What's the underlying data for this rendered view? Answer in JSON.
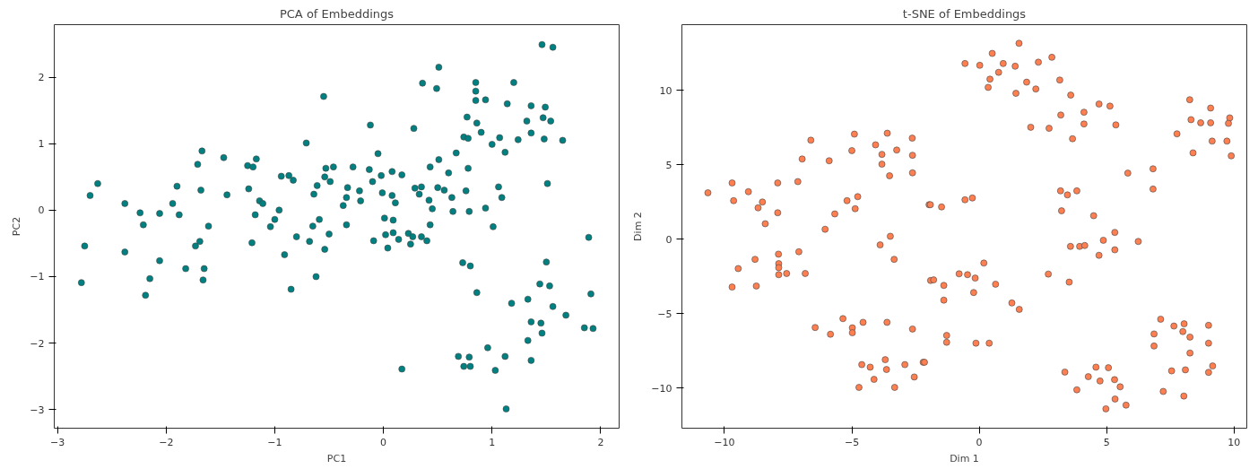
{
  "chart_data": [
    {
      "type": "scatter",
      "title": "PCA of Embeddings",
      "xlabel": "PC1",
      "ylabel": "PC2",
      "xlim": [
        -3.03,
        2.17
      ],
      "ylim": [
        -3.28,
        2.79
      ],
      "xticks": [
        -3,
        -2,
        -1,
        0,
        1,
        2
      ],
      "yticks": [
        -3,
        -2,
        -1,
        0,
        1,
        2
      ],
      "grid": false,
      "marker": "circle",
      "series": [
        {
          "color": "#008080",
          "x": [
            -2.78,
            -2.75,
            -2.7,
            -2.63,
            -2.38,
            -2.38,
            -2.24,
            -2.21,
            -2.19,
            -2.15,
            -2.06,
            -2.06,
            -1.94,
            -1.9,
            -1.88,
            -1.82,
            -1.73,
            -1.71,
            -1.69,
            -1.68,
            -1.67,
            -1.66,
            -1.65,
            -1.61,
            -1.47,
            -1.44,
            -1.25,
            -1.24,
            -1.21,
            -1.2,
            -1.17,
            -1.18,
            -1.14,
            -1.11,
            -1.04,
            -1.0,
            -0.96,
            -0.94,
            -0.91,
            -0.87,
            -0.85,
            -0.83,
            -0.8,
            -0.71,
            -0.68,
            -0.64,
            -0.62,
            -0.61,
            -0.65,
            -0.59,
            -0.55,
            -0.54,
            -0.54,
            -0.53,
            -0.5,
            -0.49,
            -0.46,
            -0.37,
            -0.34,
            -0.34,
            -0.28,
            -0.33,
            -0.22,
            -0.21,
            -0.12,
            -0.13,
            -0.1,
            -0.09,
            -0.05,
            -0.02,
            -0.01,
            0.01,
            0.02,
            0.04,
            0.08,
            0.08,
            0.09,
            0.09,
            0.11,
            0.14,
            0.17,
            0.17,
            0.23,
            0.25,
            0.27,
            0.28,
            0.29,
            0.33,
            0.35,
            0.35,
            0.36,
            0.4,
            0.42,
            0.43,
            0.45,
            0.43,
            0.49,
            0.5,
            0.51,
            0.51,
            0.56,
            0.6,
            0.63,
            0.64,
            0.67,
            0.73,
            0.74,
            0.77,
            0.76,
            0.78,
            0.78,
            0.79,
            0.8,
            0.85,
            0.85,
            0.85,
            0.86,
            0.86,
            0.9,
            0.94,
            0.94,
            0.69,
            0.79,
            0.74,
            0.8,
            0.96,
            1.0,
            1.01,
            1.03,
            1.06,
            1.07,
            1.09,
            1.12,
            1.12,
            1.13,
            1.14,
            1.18,
            1.2,
            1.24,
            1.32,
            1.33,
            1.33,
            1.36,
            1.36,
            1.36,
            1.36,
            1.44,
            1.45,
            1.46,
            1.46,
            1.47,
            1.48,
            1.49,
            1.5,
            1.51,
            1.53,
            1.54,
            1.56,
            1.56,
            1.65,
            1.68,
            1.85,
            1.89,
            1.91,
            1.93
          ],
          "values": [
            -1.09,
            -0.54,
            0.22,
            0.4,
            0.1,
            -0.63,
            -0.04,
            -0.22,
            -1.28,
            -1.03,
            -0.05,
            -0.76,
            0.1,
            0.36,
            -0.07,
            -0.88,
            -0.54,
            0.69,
            -0.47,
            0.3,
            0.89,
            -1.05,
            -0.88,
            -0.24,
            0.79,
            0.23,
            0.67,
            0.32,
            -0.49,
            0.65,
            0.77,
            -0.07,
            0.14,
            0.1,
            -0.25,
            -0.14,
            0.0,
            0.51,
            -0.67,
            0.52,
            -1.19,
            0.45,
            -0.4,
            1.01,
            -0.47,
            0.24,
            -1.0,
            0.37,
            -0.24,
            -0.14,
            1.71,
            0.5,
            -0.59,
            0.63,
            -0.36,
            0.43,
            0.65,
            0.07,
            0.19,
            -0.22,
            0.65,
            0.34,
            0.29,
            0.14,
            1.28,
            0.61,
            0.43,
            -0.46,
            0.85,
            0.52,
            0.26,
            -0.12,
            -0.37,
            -0.57,
            0.58,
            0.22,
            -0.15,
            -0.34,
            0.11,
            -0.44,
            0.53,
            -2.39,
            -0.35,
            -0.51,
            -0.4,
            1.23,
            0.33,
            0.24,
            0.35,
            -0.4,
            1.91,
            -0.46,
            0.15,
            0.65,
            0.02,
            -0.22,
            1.83,
            0.34,
            0.76,
            2.15,
            0.3,
            0.56,
            0.19,
            -0.02,
            0.86,
            -0.79,
            1.1,
            1.4,
            0.29,
            1.08,
            0.63,
            -0.02,
            -0.84,
            1.92,
            1.79,
            1.65,
            1.31,
            -1.24,
            1.17,
            1.66,
            0.03,
            -2.2,
            -2.21,
            -2.35,
            -2.35,
            -2.07,
            0.99,
            -0.25,
            -2.41,
            0.35,
            1.09,
            0.19,
            -2.2,
            0.87,
            -2.99,
            1.6,
            -1.4,
            1.92,
            1.06,
            1.34,
            -1.34,
            -1.96,
            -1.68,
            1.57,
            -2.26,
            1.16,
            -1.11,
            -1.7,
            -1.85,
            2.49,
            1.39,
            1.07,
            1.55,
            -0.78,
            0.4,
            -1.14,
            1.34,
            2.45,
            -1.45,
            1.05,
            -1.58,
            -1.77,
            -0.41,
            -1.26,
            -1.78
          ]
        }
      ]
    },
    {
      "type": "scatter",
      "title": "t-SNE of Embeddings",
      "xlabel": "Dim 1",
      "ylabel": "Dim 2",
      "xlim": [
        -11.67,
        10.5
      ],
      "ylim": [
        -12.7,
        14.4
      ],
      "xticks": [
        -10,
        -5,
        0,
        5,
        10
      ],
      "yticks": [
        -10,
        -5,
        0,
        5,
        10
      ],
      "grid": false,
      "marker": "circle",
      "series": [
        {
          "color": "#ff7f50",
          "x": [
            -10.65,
            -9.7,
            -9.64,
            -9.06,
            -8.68,
            -8.51,
            -8.4,
            -7.91,
            -7.91,
            -7.12,
            -6.95,
            -6.61,
            -6.05,
            -5.89,
            -5.67,
            -5.19,
            -4.9,
            -5.0,
            -4.77,
            -4.87,
            -4.07,
            -3.82,
            -3.82,
            -3.61,
            -3.52,
            -3.24,
            -2.63,
            -2.62,
            -2.62,
            -1.97,
            -3.49,
            -3.89,
            -3.34,
            -1.91,
            -9.7,
            -9.46,
            -8.8,
            -8.75,
            -7.88,
            -7.87,
            -7.87,
            -7.87,
            -7.56,
            -7.08,
            -6.83,
            -6.44,
            -5.84,
            -5.35,
            -4.98,
            -4.98,
            -4.56,
            -3.62,
            -2.62,
            -4.61,
            -4.28,
            -3.69,
            -3.64,
            -4.13,
            -4.72,
            -3.32,
            -2.92,
            -2.55,
            -2.2,
            -0.56,
            0.02,
            0.51,
            0.94,
            0.76,
            0.42,
            0.35,
            1.41,
            1.56,
            1.86,
            1.44,
            2.22,
            2.32,
            2.85,
            3.16,
            3.59,
            2.02,
            2.74,
            3.2,
            3.66,
            4.11,
            4.11,
            4.7,
            5.13,
            5.36,
            -1.92,
            -1.48,
            -0.56,
            -0.27,
            3.19,
            3.46,
            3.83,
            3.23,
            4.49,
            5.32,
            4.87,
            3.58,
            3.94,
            4.14,
            5.32,
            4.7,
            6.24,
            5.83,
            6.82,
            6.82,
            8.26,
            9.08,
            8.31,
            8.69,
            9.08,
            9.83,
            9.78,
            7.76,
            9.14,
            9.72,
            8.39,
            9.89,
            0.18,
            -0.79,
            -0.46,
            -0.16,
            -1.79,
            -1.39,
            -0.22,
            -1.39,
            0.64,
            1.28,
            1.57,
            2.71,
            3.53,
            -1.28,
            -1.28,
            -0.13,
            0.39,
            -2.15,
            7.12,
            6.86,
            6.86,
            7.64,
            8.04,
            7.99,
            8.27,
            9.0,
            9.0,
            8.27,
            7.55,
            8.09,
            9.0,
            9.16,
            7.22,
            8.03,
            3.36,
            4.28,
            4.58,
            5.07,
            4.74,
            5.31,
            5.53,
            3.83,
            5.33,
            5.76,
            4.97
          ],
          "values": [
            3.11,
            3.77,
            2.58,
            3.18,
            2.1,
            2.49,
            1.03,
            3.77,
            1.77,
            3.86,
            5.38,
            6.64,
            0.66,
            5.26,
            1.69,
            2.58,
            7.05,
            5.94,
            2.85,
            2.04,
            6.33,
            5.69,
            5.03,
            7.11,
            4.25,
            5.98,
            6.78,
            5.63,
            4.45,
            2.31,
            0.19,
            -0.39,
            -1.36,
            -2.78,
            -3.22,
            -1.98,
            -1.36,
            -3.15,
            -1.01,
            -1.65,
            -1.92,
            -2.39,
            -2.31,
            -0.85,
            -2.31,
            -5.94,
            -6.39,
            -5.34,
            -5.96,
            -6.29,
            -5.59,
            -5.59,
            -6.04,
            -8.43,
            -8.6,
            -8.1,
            -8.76,
            -9.42,
            -9.96,
            -9.96,
            -8.43,
            -9.26,
            -8.27,
            11.79,
            11.67,
            12.47,
            11.79,
            11.2,
            10.74,
            10.19,
            11.61,
            13.15,
            10.54,
            9.79,
            10.08,
            11.88,
            12.21,
            10.68,
            9.67,
            7.51,
            7.44,
            8.33,
            6.74,
            8.52,
            7.73,
            9.07,
            8.93,
            7.67,
            2.31,
            2.16,
            2.64,
            2.76,
            3.24,
            2.97,
            3.24,
            1.9,
            1.57,
            0.45,
            -0.08,
            -0.49,
            -0.49,
            -0.43,
            -0.72,
            -1.09,
            -0.16,
            4.43,
            4.72,
            3.36,
            9.36,
            8.8,
            8.02,
            7.81,
            7.81,
            8.14,
            7.77,
            7.07,
            6.58,
            6.58,
            5.79,
            5.59,
            -1.61,
            -2.33,
            -2.39,
            -2.62,
            -2.74,
            -3.11,
            -3.59,
            -4.1,
            -3.03,
            -4.29,
            -4.72,
            -2.35,
            -2.89,
            -6.47,
            -6.93,
            -6.99,
            -6.99,
            -8.27,
            -5.38,
            -6.37,
            -7.18,
            -5.84,
            -5.69,
            -6.21,
            -6.58,
            -5.79,
            -6.99,
            -7.65,
            -8.85,
            -8.78,
            -8.95,
            -8.52,
            -10.23,
            -10.54,
            -8.93,
            -9.24,
            -8.6,
            -8.64,
            -9.53,
            -9.44,
            -9.92,
            -10.12,
            -10.74,
            -11.15,
            -11.4
          ]
        }
      ]
    }
  ]
}
